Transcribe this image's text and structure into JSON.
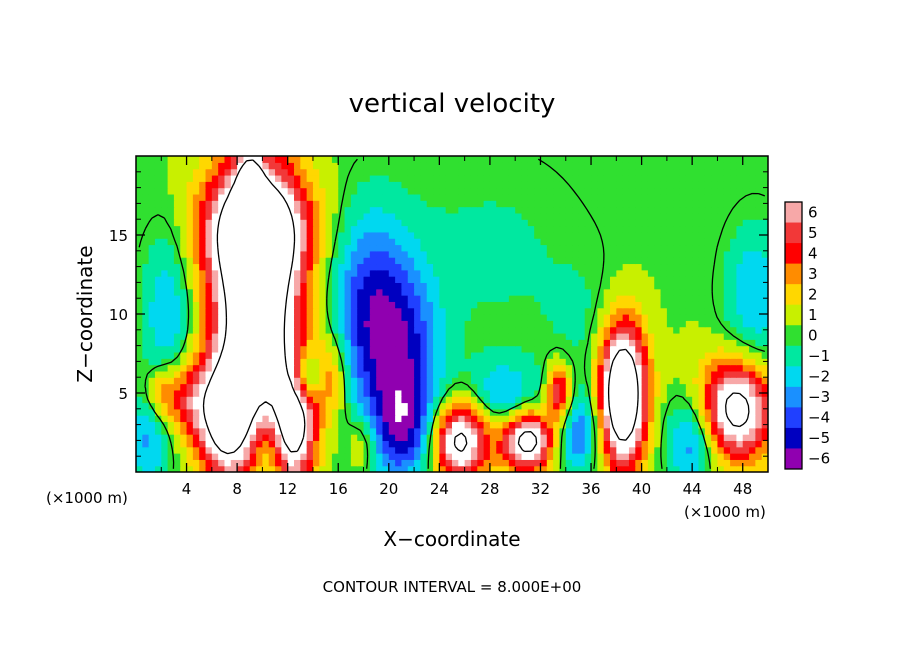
{
  "chart_data": {
    "type": "heatmap",
    "title": "vertical velocity",
    "xlabel": "X−coordinate",
    "ylabel": "Z−coordinate",
    "x_unit_label": "(×1000 m)",
    "y_unit_label": "(×1000 m)",
    "xlim": [
      0,
      50
    ],
    "ylim": [
      0,
      20
    ],
    "x_ticks": [
      4,
      8,
      12,
      16,
      20,
      24,
      28,
      32,
      36,
      40,
      44,
      48
    ],
    "x_tick_labels": [
      "4",
      "8",
      "12",
      "16",
      "20",
      "24",
      "28",
      "32",
      "36",
      "40",
      "44",
      "48"
    ],
    "y_ticks": [
      5,
      10,
      15
    ],
    "y_tick_labels": [
      "5",
      "10",
      "15"
    ],
    "colorbar": {
      "levels": [
        6,
        5,
        4,
        3,
        2,
        1,
        0,
        -1,
        -2,
        -3,
        -4,
        -5,
        -6
      ],
      "labels": [
        "6",
        "5",
        "4",
        "3",
        "2",
        "1",
        "0",
        "−1",
        "−2",
        "−3",
        "−4",
        "−5",
        "−6"
      ],
      "colors": [
        "#f7a8a8",
        "#f23838",
        "#ff0000",
        "#ff8c00",
        "#ffd700",
        "#c8f000",
        "#30e030",
        "#00e8a0",
        "#00d8f0",
        "#1a90ff",
        "#2040ff",
        "#0000c0",
        "#9000b0"
      ]
    },
    "features": [
      {
        "x": 9.5,
        "z": 10,
        "sx": 2.4,
        "sz": 6,
        "w": 11
      },
      {
        "x": 9.5,
        "z": 15.5,
        "sx": 3,
        "sz": 2.5,
        "w": 7
      },
      {
        "x": 9,
        "z": 18,
        "sx": 0.7,
        "sz": 1.8,
        "w": 5
      },
      {
        "x": 7,
        "z": 3.5,
        "sx": 1.4,
        "sz": 2.5,
        "w": 8
      },
      {
        "x": 12.5,
        "z": 3,
        "sx": 1.2,
        "sz": 2.5,
        "w": 8
      },
      {
        "x": 4,
        "z": 4.5,
        "sx": 1.3,
        "sz": 1.8,
        "w": 4
      },
      {
        "x": 25.5,
        "z": 2,
        "sx": 1.6,
        "sz": 1.8,
        "w": 9
      },
      {
        "x": 31,
        "z": 2,
        "sx": 1.4,
        "sz": 1.3,
        "w": 9
      },
      {
        "x": 33.5,
        "z": 5,
        "sx": 0.7,
        "sz": 1.3,
        "w": 6
      },
      {
        "x": 38.5,
        "z": 5,
        "sx": 1.3,
        "sz": 3.2,
        "w": 12
      },
      {
        "x": 47.5,
        "z": 4,
        "sx": 2,
        "sz": 2.2,
        "w": 9
      },
      {
        "x": 15.5,
        "z": 6,
        "sx": 1,
        "sz": 2,
        "w": 3
      },
      {
        "x": 18,
        "z": 2,
        "sx": 1,
        "sz": 1.5,
        "w": 3
      },
      {
        "x": 2,
        "z": 5,
        "sx": 0.8,
        "sz": 1.2,
        "w": 3
      },
      {
        "x": 13.5,
        "z": 6,
        "sx": 0.8,
        "sz": 1.2,
        "w": -4
      },
      {
        "x": 18.5,
        "z": 10,
        "sx": 2.2,
        "sz": 4.5,
        "w": -5
      },
      {
        "x": 21.5,
        "z": 7,
        "sx": 2,
        "sz": 4,
        "w": -4
      },
      {
        "x": 21,
        "z": 2.5,
        "sx": 2.4,
        "sz": 2.2,
        "w": -4
      },
      {
        "x": 2.5,
        "z": 10,
        "sx": 1.5,
        "sz": 4,
        "w": -3
      },
      {
        "x": 1,
        "z": 2,
        "sx": 1.3,
        "sz": 2,
        "w": -3
      },
      {
        "x": 10.5,
        "z": 1.5,
        "sx": 1,
        "sz": 2,
        "w": -3
      },
      {
        "x": 29,
        "z": 5,
        "sx": 2,
        "sz": 1.5,
        "w": -3
      },
      {
        "x": 35,
        "z": 2.5,
        "sx": 1.3,
        "sz": 2,
        "w": -4
      },
      {
        "x": 44,
        "z": 2,
        "sx": 1.5,
        "sz": 2,
        "w": -4
      },
      {
        "x": 49,
        "z": 11,
        "sx": 1.8,
        "sz": 3.5,
        "w": -3
      },
      {
        "x": 36,
        "z": 9,
        "sx": 2.5,
        "sz": 3,
        "w": -1
      },
      {
        "x": 28,
        "z": 14,
        "sx": 6,
        "sz": 5,
        "w": -1.2
      }
    ]
  },
  "footer": {
    "contour_interval": "CONTOUR INTERVAL = 8.000E+00"
  }
}
